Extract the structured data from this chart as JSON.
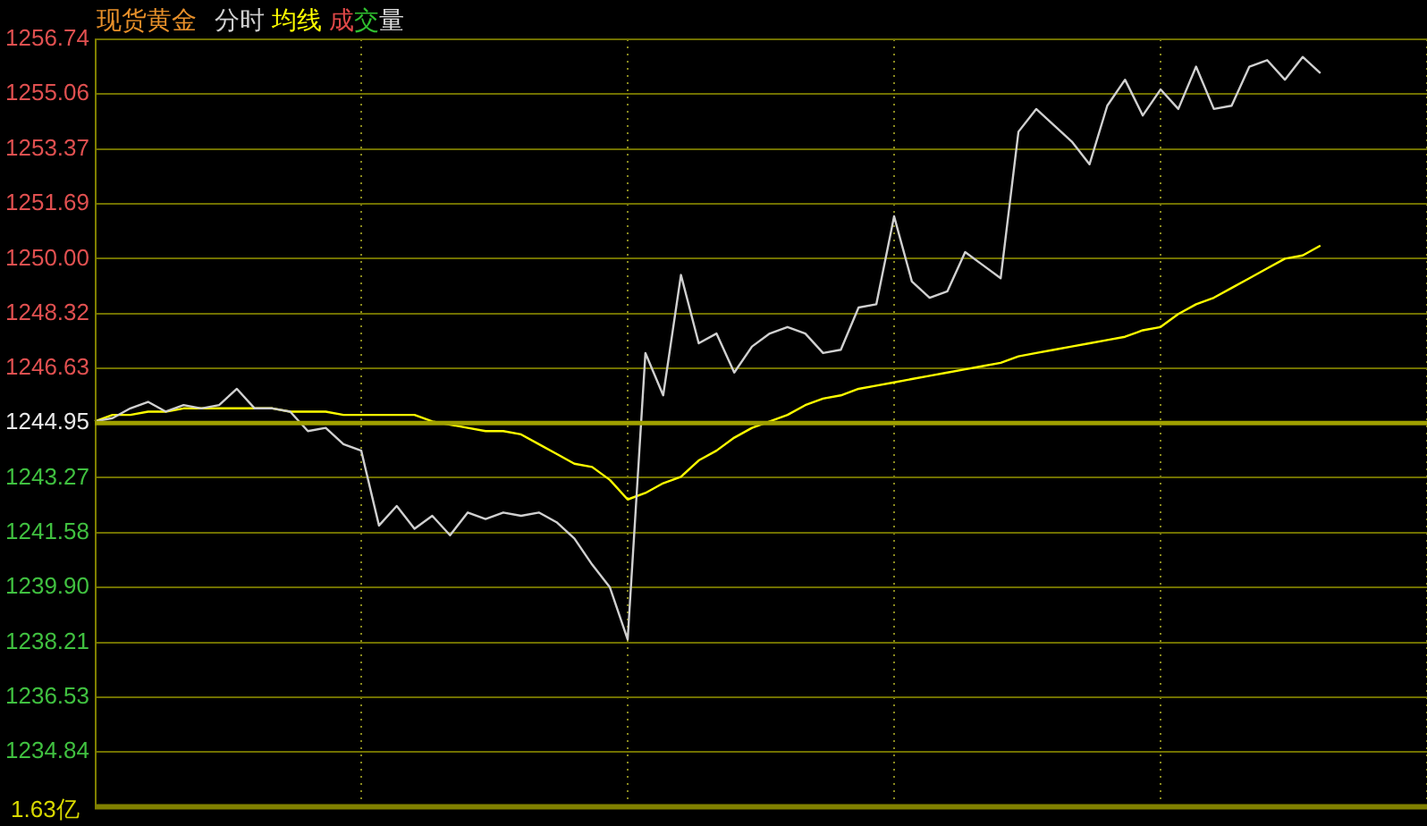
{
  "chart_data": {
    "type": "line",
    "title": "现货黄金",
    "categories": [
      null,
      null,
      null,
      null,
      null,
      null,
      null,
      null,
      null,
      null,
      null,
      null,
      null,
      null,
      null,
      null,
      null,
      null,
      null,
      null,
      null,
      null,
      null,
      null,
      null,
      null,
      null,
      null,
      null,
      null,
      null,
      null,
      null,
      null,
      null,
      null,
      null,
      null,
      null,
      null,
      null,
      null,
      null,
      null,
      null,
      null,
      null,
      null,
      null,
      null,
      null,
      null,
      null,
      null,
      null,
      null,
      null,
      null,
      null,
      null,
      null,
      null,
      null,
      null,
      null,
      null,
      null,
      null,
      null,
      null,
      null,
      null,
      null,
      null,
      null,
      null
    ],
    "series": [
      {
        "name": "分时",
        "color": "#d0d0d0",
        "values": [
          1245.0,
          1245.1,
          1245.4,
          1245.6,
          1245.3,
          1245.5,
          1245.4,
          1245.5,
          1246.0,
          1245.4,
          1245.4,
          1245.3,
          1244.7,
          1244.8,
          1244.3,
          1244.1,
          1241.8,
          1242.4,
          1241.7,
          1242.1,
          1241.5,
          1242.2,
          1242.0,
          1242.2,
          1242.1,
          1242.2,
          1241.9,
          1241.4,
          1240.6,
          1239.9,
          1238.3,
          1247.1,
          1245.8,
          1249.5,
          1247.4,
          1247.7,
          1246.5,
          1247.3,
          1247.7,
          1247.9,
          1247.7,
          1247.1,
          1247.2,
          1248.5,
          1248.6,
          1251.3,
          1249.3,
          1248.8,
          1249.0,
          1250.2,
          1249.8,
          1249.4,
          1253.9,
          1254.6,
          1254.1,
          1253.6,
          1252.9,
          1254.7,
          1255.5,
          1254.4,
          1255.2,
          1254.6,
          1255.9,
          1254.6,
          1254.7,
          1255.9,
          1256.1,
          1255.5,
          1256.2,
          1255.7,
          null,
          null,
          null,
          null,
          null,
          null
        ]
      },
      {
        "name": "均线",
        "color": "#ffff00",
        "values": [
          1245.0,
          1245.2,
          1245.2,
          1245.3,
          1245.3,
          1245.4,
          1245.4,
          1245.4,
          1245.4,
          1245.4,
          1245.4,
          1245.3,
          1245.3,
          1245.3,
          1245.2,
          1245.2,
          1245.2,
          1245.2,
          1245.2,
          1245.0,
          1244.9,
          1244.8,
          1244.7,
          1244.7,
          1244.6,
          1244.3,
          1244.0,
          1243.7,
          1243.6,
          1243.2,
          1242.6,
          1242.8,
          1243.1,
          1243.3,
          1243.8,
          1244.1,
          1244.5,
          1244.8,
          1245.0,
          1245.2,
          1245.5,
          1245.7,
          1245.8,
          1246.0,
          1246.1,
          1246.2,
          1246.3,
          1246.4,
          1246.5,
          1246.6,
          1246.7,
          1246.8,
          1247.0,
          1247.1,
          1247.2,
          1247.3,
          1247.4,
          1247.5,
          1247.6,
          1247.8,
          1247.9,
          1248.3,
          1248.6,
          1248.8,
          1249.1,
          1249.4,
          1249.7,
          1250.0,
          1250.1,
          1250.4,
          null,
          null,
          null,
          null,
          null,
          null
        ]
      }
    ],
    "ylim": [
      1233.16,
      1256.74
    ],
    "yticks": [
      1256.74,
      1255.06,
      1253.37,
      1251.69,
      {
        "value": 1250,
        "label": "1250.00"
      },
      1248.32,
      1246.63,
      1244.95,
      1243.27,
      1241.58,
      {
        "value": 1239.9,
        "label": "1239.90"
      },
      1238.21,
      1236.53,
      1234.84
    ],
    "ref_lines": [
      {
        "axis": "y",
        "value": 1244.95,
        "color": "#a0a000"
      }
    ],
    "annotations": [
      "成交量",
      "1.63亿"
    ],
    "grid": true,
    "legend": "top left",
    "tick_labels": "y",
    "marker": "none",
    "line_style": "solid"
  }
}
